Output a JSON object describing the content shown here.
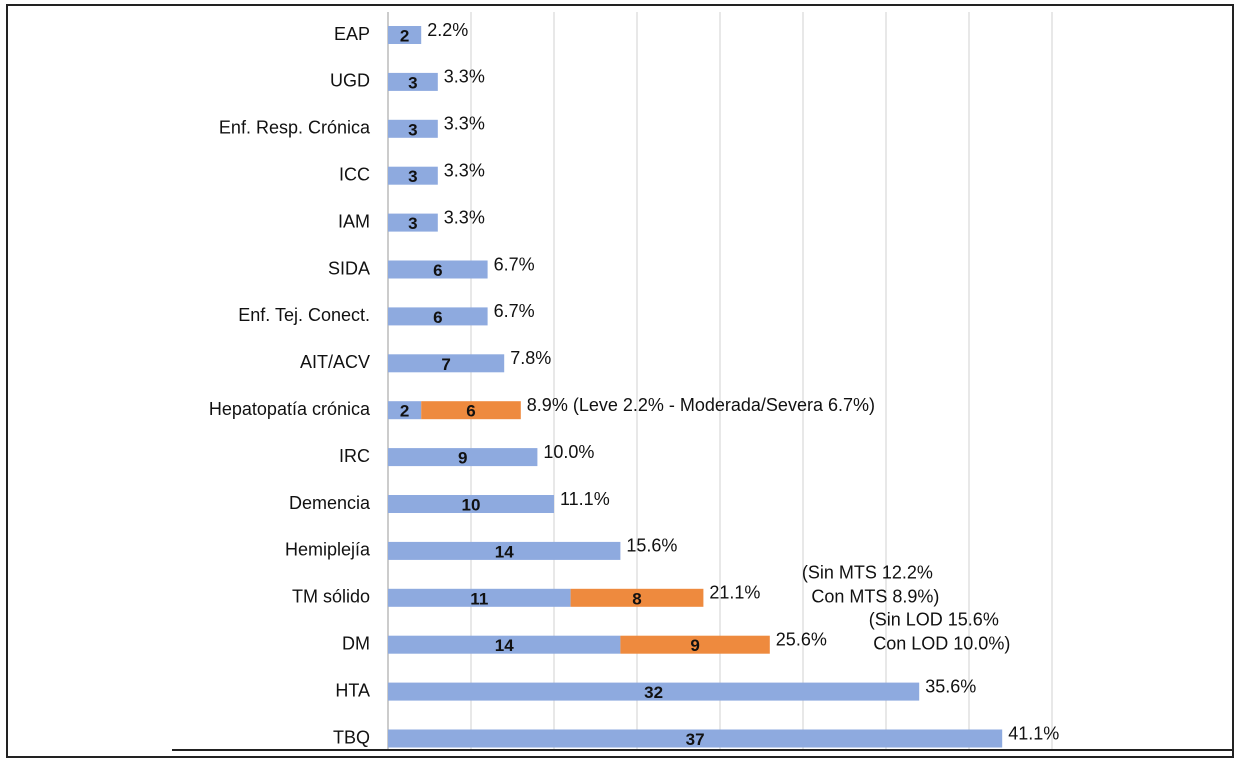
{
  "chart_data": {
    "type": "bar",
    "orientation": "horizontal",
    "stacked": true,
    "categories": [
      "EAP",
      "UGD",
      "Enf. Resp. Crónica",
      "ICC",
      "IAM",
      "SIDA",
      "Enf. Tej. Conect.",
      "AIT/ACV",
      "Hepatopatía crónica",
      "IRC",
      "Demencia",
      "Hemiplejía",
      "TM sólido",
      "DM",
      "HTA",
      "TBQ"
    ],
    "series": [
      {
        "color": "#8eaadf",
        "values": [
          2,
          3,
          3,
          3,
          3,
          6,
          6,
          7,
          2,
          9,
          10,
          14,
          11,
          14,
          32,
          37
        ]
      },
      {
        "color": "#ee8a3e",
        "values": [
          null,
          null,
          null,
          null,
          null,
          null,
          null,
          null,
          6,
          null,
          null,
          null,
          8,
          9,
          null,
          null
        ]
      }
    ],
    "annotations": [
      "2.2%",
      "3.3%",
      "3.3%",
      "3.3%",
      "3.3%",
      "6.7%",
      "6.7%",
      "7.8%",
      "8.9% (Leve 2.2% - Moderada/Severa 6.7%)",
      "10.0%",
      "11.1%",
      "15.6%",
      "21.1%",
      "25.6%",
      "35.6%",
      "41.1%"
    ],
    "notes": [
      null,
      null,
      null,
      null,
      null,
      null,
      null,
      null,
      null,
      null,
      null,
      null,
      [
        "(Sin MTS 12.2%",
        "Con MTS 8.9%)"
      ],
      [
        "(Sin LOD 15.6%",
        "Con LOD 10.0%)"
      ],
      null,
      null
    ],
    "xlim": [
      0,
      40
    ],
    "xticks": [
      0,
      5,
      10,
      15,
      20,
      25,
      30,
      35,
      40
    ],
    "grid": true
  }
}
